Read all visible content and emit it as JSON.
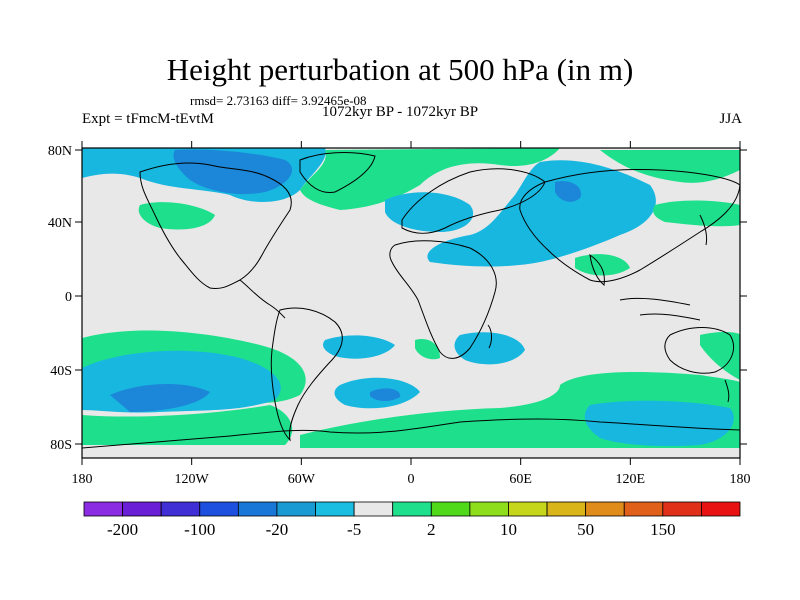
{
  "title": "Height perturbation at 500 hPa (in m)",
  "stats": "rmsd= 2.73163 diff= 3.92465e-08",
  "experiment": "Expt = tFmcM-tEvtM",
  "period": "1072kyr BP - 1072kyr BP",
  "season": "JJA",
  "lon_ticks": [
    "180",
    "120W",
    "60W",
    "0",
    "60E",
    "120E",
    "180"
  ],
  "lat_ticks": [
    "80N",
    "40N",
    "0",
    "40S",
    "80S"
  ],
  "colorbar": {
    "colors": [
      "#8b2be2",
      "#6a1fd6",
      "#3f2fd4",
      "#1e50e0",
      "#1977d8",
      "#199ad3",
      "#1bbde0",
      "#e8e8e8",
      "#1ee08c",
      "#4fd91a",
      "#8ede1c",
      "#c6d61a",
      "#d9b51a",
      "#e08c1a",
      "#e0601a",
      "#e0301a",
      "#e81212"
    ],
    "labels": [
      "-200",
      "-100",
      "-20",
      "-5",
      "2",
      "10",
      "50",
      "150"
    ]
  },
  "palette": {
    "neutral": "#e8e8e8",
    "blue": "#17b7df",
    "blue_dark": "#1c86d8",
    "green": "#1ee08c",
    "green_dark": "#52d51c"
  }
}
